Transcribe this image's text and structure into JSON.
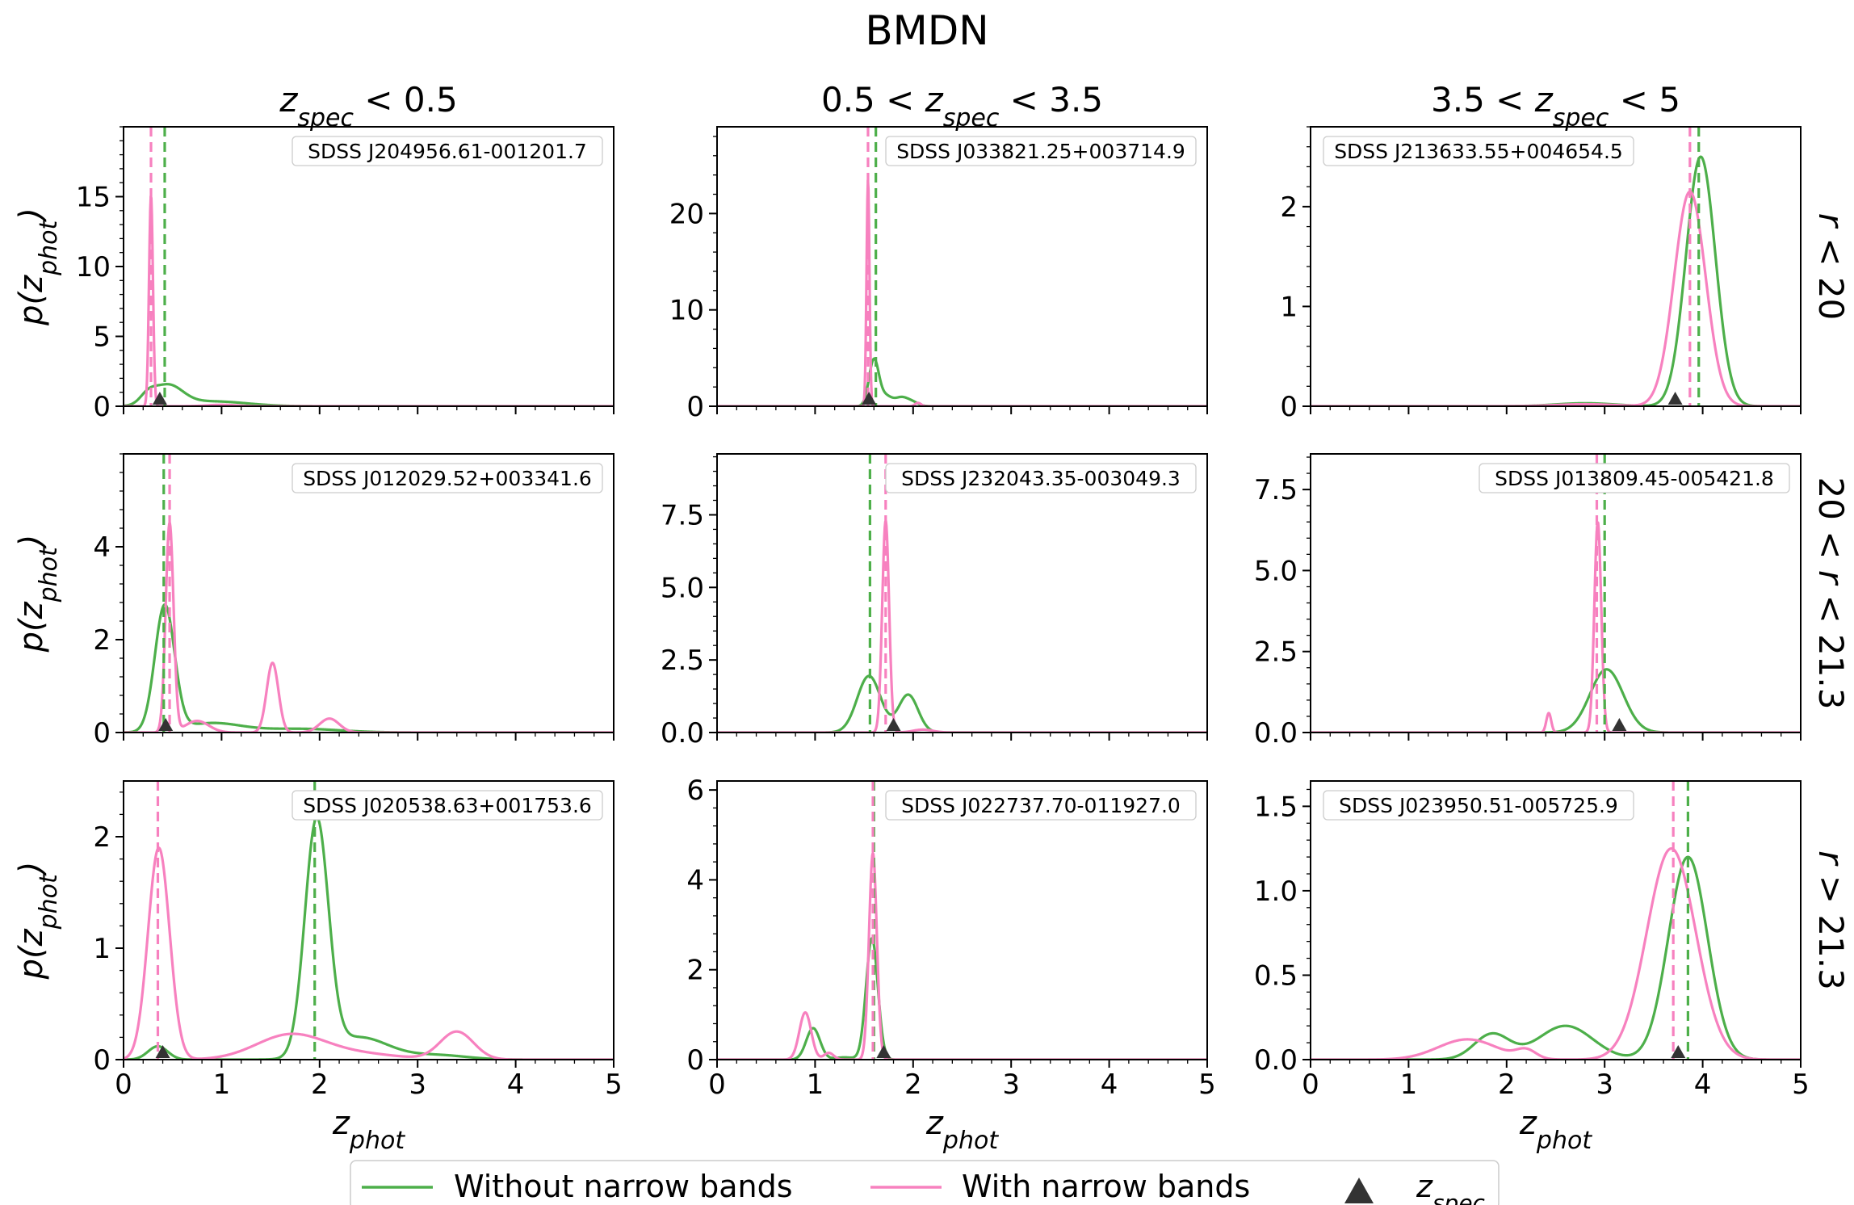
{
  "chart_data": {
    "type": "line",
    "title": "BMDN",
    "column_titles": [
      {
        "sym": "z",
        "sub": "spec",
        "prefix": "",
        "suffix": " < 0.5"
      },
      {
        "sym": "z",
        "sub": "spec",
        "prefix": "0.5 < ",
        "suffix": " < 3.5"
      },
      {
        "sym": "z",
        "sub": "spec",
        "prefix": "3.5 < ",
        "suffix": " < 5"
      }
    ],
    "row_labels": [
      "r < 20",
      "20 < r < 21.3",
      "r > 21.3"
    ],
    "ylabel": {
      "sym": "p(z",
      "sub": "phot",
      "close": ")"
    },
    "xlabel": {
      "sym": "z",
      "sub": "phot"
    },
    "xlim": [
      0,
      5
    ],
    "xticks": [
      "0",
      "1",
      "2",
      "3",
      "4",
      "5"
    ],
    "colors": {
      "without": "#4daf4a",
      "with": "#f781bf",
      "marker": "#333333"
    },
    "legend": {
      "without_label": "Without narrow bands",
      "with_label": "With narrow bands",
      "marker_sym": "z",
      "marker_sub": "spec",
      "position": "bottom-center"
    },
    "panels": [
      {
        "id": "SDSS J204956.61-001201.7",
        "label_pos": "right",
        "ylim": [
          0,
          20
        ],
        "yticks": [
          0,
          5,
          10,
          15
        ],
        "ytick_labels": [
          "0",
          "5",
          "10",
          "15"
        ],
        "zspec": 0.37,
        "vline_without": 0.42,
        "vline_with": 0.28,
        "without": [
          [
            0.25,
            0.6,
            0.08
          ],
          [
            0.45,
            1.4,
            0.15
          ],
          [
            0.9,
            0.35,
            0.35
          ]
        ],
        "with": [
          [
            0.28,
            15.1,
            0.02
          ],
          [
            1.0,
            0.1,
            0.15
          ]
        ]
      },
      {
        "id": "SDSS J033821.25+003714.9",
        "label_pos": "right",
        "ylim": [
          0,
          29
        ],
        "yticks": [
          0,
          10,
          20
        ],
        "ytick_labels": [
          "0",
          "10",
          "20"
        ],
        "zspec": 1.55,
        "vline_without": 1.62,
        "vline_with": 1.54,
        "without": [
          [
            1.6,
            4.8,
            0.05
          ],
          [
            1.72,
            1.0,
            0.06
          ],
          [
            1.88,
            0.9,
            0.07
          ],
          [
            2.0,
            0.35,
            0.06
          ]
        ],
        "with": [
          [
            1.54,
            23.5,
            0.015
          ],
          [
            2.05,
            0.35,
            0.03
          ]
        ]
      },
      {
        "id": "SDSS J213633.55+004654.5",
        "label_pos": "left",
        "ylim": [
          0,
          2.8
        ],
        "yticks": [
          0,
          1,
          2
        ],
        "ytick_labels": [
          "0",
          "1",
          "2"
        ],
        "zspec": 3.72,
        "vline_without": 3.96,
        "vline_with": 3.87,
        "without": [
          [
            3.98,
            2.5,
            0.15
          ],
          [
            2.8,
            0.03,
            0.3
          ]
        ],
        "with": [
          [
            3.87,
            2.15,
            0.16
          ],
          [
            2.8,
            0.02,
            0.3
          ]
        ]
      },
      {
        "id": "SDSS J012029.52+003341.6",
        "label_pos": "right",
        "ylim": [
          0,
          6
        ],
        "yticks": [
          0,
          2,
          4
        ],
        "ytick_labels": [
          "0",
          "2",
          "4"
        ],
        "zspec": 0.43,
        "vline_without": 0.41,
        "vline_with": 0.47,
        "without": [
          [
            0.42,
            2.7,
            0.1
          ],
          [
            0.9,
            0.2,
            0.3
          ],
          [
            1.8,
            0.08,
            0.4
          ]
        ],
        "with": [
          [
            0.47,
            4.5,
            0.04
          ],
          [
            0.75,
            0.25,
            0.12
          ],
          [
            1.52,
            1.5,
            0.06
          ],
          [
            2.1,
            0.3,
            0.1
          ]
        ]
      },
      {
        "id": "SDSS J232043.35-003049.3",
        "label_pos": "right",
        "ylim": [
          0,
          9.6
        ],
        "yticks": [
          0,
          2.5,
          5,
          7.5
        ],
        "ytick_labels": [
          "0.0",
          "2.5",
          "5.0",
          "7.5"
        ],
        "zspec": 1.8,
        "vline_without": 1.56,
        "vline_with": 1.72,
        "without": [
          [
            1.55,
            1.95,
            0.12
          ],
          [
            1.95,
            1.3,
            0.1
          ]
        ],
        "with": [
          [
            1.72,
            7.3,
            0.035
          ],
          [
            2.1,
            0.1,
            0.1
          ]
        ]
      },
      {
        "id": "SDSS J013809.45-005421.8",
        "label_pos": "right",
        "ylim": [
          0,
          8.6
        ],
        "yticks": [
          0,
          2.5,
          5,
          7.5
        ],
        "ytick_labels": [
          "0.0",
          "2.5",
          "5.0",
          "7.5"
        ],
        "zspec": 3.15,
        "vline_without": 3.0,
        "vline_with": 2.92,
        "without": [
          [
            3.02,
            1.95,
            0.17
          ]
        ],
        "with": [
          [
            2.93,
            6.5,
            0.035
          ],
          [
            2.43,
            0.6,
            0.025
          ]
        ]
      },
      {
        "id": "SDSS J020538.63+001753.6",
        "label_pos": "right",
        "ylim": [
          0,
          2.5
        ],
        "yticks": [
          0,
          1,
          2
        ],
        "ytick_labels": [
          "0",
          "1",
          "2"
        ],
        "zspec": 0.4,
        "vline_without": 1.95,
        "vline_with": 0.35,
        "without": [
          [
            1.97,
            2.1,
            0.12
          ],
          [
            2.4,
            0.2,
            0.3
          ],
          [
            3.2,
            0.04,
            0.3
          ],
          [
            0.35,
            0.12,
            0.1
          ]
        ],
        "with": [
          [
            0.36,
            1.9,
            0.11
          ],
          [
            1.7,
            0.22,
            0.35
          ],
          [
            2.4,
            0.05,
            0.4
          ],
          [
            3.4,
            0.25,
            0.17
          ]
        ]
      },
      {
        "id": "SDSS J022737.70-011927.0",
        "label_pos": "right",
        "ylim": [
          0,
          6.2
        ],
        "yticks": [
          0,
          2,
          4,
          6
        ],
        "ytick_labels": [
          "0",
          "2",
          "4",
          "6"
        ],
        "zspec": 1.7,
        "vline_without": 1.6,
        "vline_with": 1.59,
        "without": [
          [
            0.98,
            0.7,
            0.07
          ],
          [
            1.58,
            2.7,
            0.06
          ],
          [
            1.3,
            0.05,
            0.1
          ]
        ],
        "with": [
          [
            0.9,
            1.05,
            0.06
          ],
          [
            1.14,
            0.15,
            0.05
          ],
          [
            1.59,
            4.6,
            0.04
          ]
        ]
      },
      {
        "id": "SDSS J023950.51-005725.9",
        "label_pos": "left",
        "ylim": [
          0,
          1.65
        ],
        "yticks": [
          0,
          0.5,
          1,
          1.5
        ],
        "ytick_labels": [
          "0.0",
          "0.5",
          "1.0",
          "1.5"
        ],
        "zspec": 3.75,
        "vline_without": 3.85,
        "vline_with": 3.7,
        "without": [
          [
            3.85,
            1.2,
            0.2
          ],
          [
            1.85,
            0.15,
            0.18
          ],
          [
            2.6,
            0.2,
            0.28
          ]
        ],
        "with": [
          [
            3.68,
            1.25,
            0.25
          ],
          [
            1.6,
            0.12,
            0.3
          ],
          [
            2.2,
            0.05,
            0.1
          ]
        ]
      }
    ]
  }
}
